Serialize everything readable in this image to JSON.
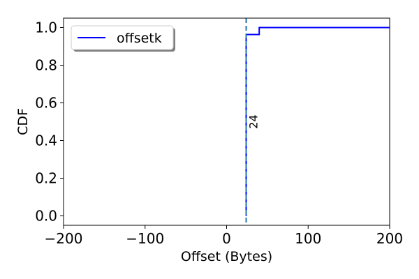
{
  "chart_data": {
    "type": "line",
    "title": "",
    "xlabel": "Offset (Bytes)",
    "ylabel": "CDF",
    "xlim": [
      -200,
      200
    ],
    "ylim": [
      -0.05,
      1.05
    ],
    "xticks": [
      -200,
      -100,
      0,
      100,
      200
    ],
    "xtick_labels": [
      "−200",
      "−100",
      "0",
      "100",
      "200"
    ],
    "yticks": [
      0.0,
      0.2,
      0.4,
      0.6,
      0.8,
      1.0
    ],
    "ytick_labels": [
      "0.0",
      "0.2",
      "0.4",
      "0.6",
      "0.8",
      "1.0"
    ],
    "grid": false,
    "legend": {
      "position": "upper-left"
    },
    "series": [
      {
        "name": "offsetk",
        "color": "#0000ff",
        "step": "post",
        "x": [
          24,
          24,
          40,
          40,
          200
        ],
        "y": [
          0.0,
          0.963,
          0.963,
          1.0,
          1.0
        ]
      }
    ],
    "annotations": [
      {
        "type": "vline",
        "x": 24,
        "color": "#1f77b4",
        "style": "dashed",
        "label": "24"
      }
    ]
  }
}
